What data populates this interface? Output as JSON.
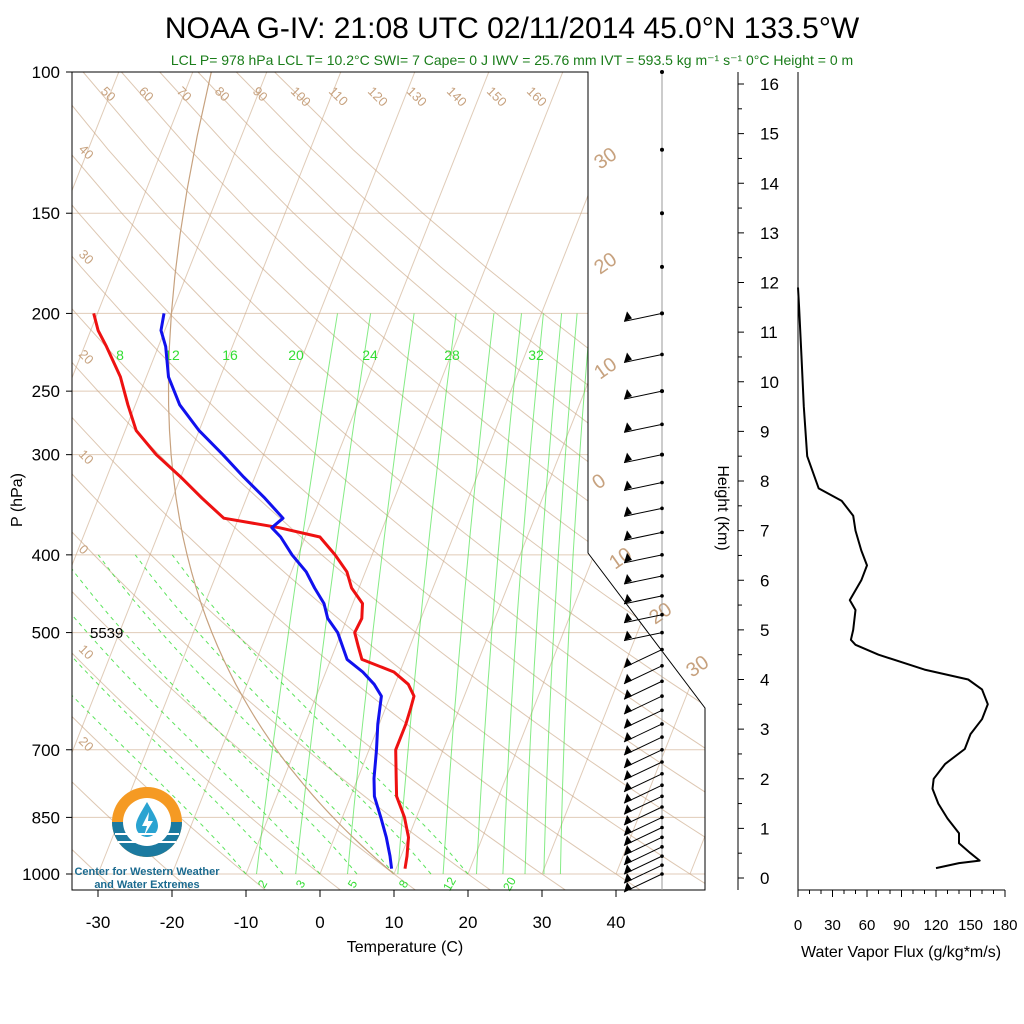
{
  "title": "NOAA G-IV: 21:08 UTC 02/11/2014  45.0°N 133.5°W",
  "subtitle": "LCL P= 978 hPa  LCL T= 10.2°C  SWI= 7  Cape= 0 J  IWV = 25.76 mm  IVT = 593.5 kg m⁻¹ s⁻¹  0°C Height = 0 m",
  "logo_text": [
    "Center for Western Weather",
    "and Water Extremes"
  ],
  "colors": {
    "temperature": "#ee1111",
    "dewpoint": "#1111ee",
    "mixing_ratio": "#33dd33",
    "dry_adiabat": "#c7a27f",
    "flux": "#000000"
  },
  "chart_data": [
    {
      "type": "line",
      "kind": "skew-T log-P",
      "xlabel": "Temperature (C)",
      "ylabel": "P (hPa)",
      "xlim": [
        -30,
        40
      ],
      "ylim": [
        1000,
        100
      ],
      "y_scale": "log",
      "x_ticks": [
        "-30",
        "-20",
        "-10",
        "0",
        "10",
        "20",
        "30",
        "40"
      ],
      "y_ticks": [
        "100",
        "150",
        "200",
        "250",
        "300",
        "400",
        "500",
        "700",
        "850",
        "1000"
      ],
      "annotation": "5539",
      "mixing_ratio_labels_top": [
        "8",
        "12",
        "16",
        "20",
        "24",
        "28",
        "32"
      ],
      "mixing_ratio_labels_bottom": [
        "2",
        "3",
        "5",
        "8",
        "12",
        "20"
      ],
      "adiabat_labels": [
        "50",
        "60",
        "70",
        "80",
        "90",
        "100",
        "110",
        "120",
        "130",
        "140",
        "150",
        "160",
        "40",
        "30",
        "20",
        "10",
        "0",
        "10",
        "20",
        "30",
        "20",
        "10",
        "0",
        "10",
        "20",
        "30"
      ],
      "series": [
        {
          "name": "Temperature",
          "p": [
            985,
            950,
            900,
            850,
            800,
            760,
            700,
            650,
            620,
            600,
            580,
            560,
            540,
            520,
            500,
            480,
            460,
            440,
            420,
            400,
            380,
            370,
            360,
            340,
            320,
            300,
            280,
            260,
            240,
            220,
            210,
            200
          ],
          "t": [
            11.2,
            10.8,
            10.0,
            8.4,
            6.2,
            5.2,
            3.6,
            3.6,
            3.4,
            3.2,
            1.8,
            -0.8,
            -5.8,
            -7.0,
            -8.2,
            -8.0,
            -8.7,
            -11.0,
            -12.5,
            -15.0,
            -18.0,
            -24.0,
            -32.0,
            -36.0,
            -40.0,
            -44.5,
            -48.5,
            -51.0,
            -53.5,
            -57.0,
            -59.0,
            -60.5
          ]
        },
        {
          "name": "Dewpoint",
          "p": [
            985,
            950,
            900,
            850,
            800,
            760,
            700,
            650,
            600,
            580,
            560,
            540,
            500,
            480,
            460,
            440,
            420,
            400,
            380,
            370,
            360,
            340,
            320,
            300,
            280,
            260,
            240,
            220,
            210,
            200
          ],
          "td": [
            9.4,
            8.5,
            7.0,
            5.2,
            3.2,
            2.2,
            1.0,
            -0.2,
            -1.2,
            -2.8,
            -5.0,
            -7.8,
            -10.5,
            -12.6,
            -13.9,
            -16.0,
            -18.0,
            -20.8,
            -23.3,
            -25.0,
            -24.0,
            -27.5,
            -31.5,
            -35.5,
            -40.0,
            -44.0,
            -47.0,
            -49.0,
            -50.5,
            -51.0
          ]
        }
      ],
      "wind_barbs_hpa": [
        1000,
        975,
        950,
        925,
        900,
        875,
        850,
        825,
        800,
        775,
        750,
        725,
        700,
        675,
        650,
        625,
        600,
        575,
        550,
        525,
        500,
        475,
        450,
        425,
        400,
        375,
        350,
        325,
        300,
        275,
        250,
        225,
        200
      ]
    },
    {
      "type": "line",
      "name": "Water Vapor Flux profile",
      "xlabel": "Water Vapor Flux (g/kg*m/s)",
      "ylabel": "Height (Km)",
      "xlim": [
        0,
        180
      ],
      "ylim": [
        0,
        16
      ],
      "x_ticks": [
        "0",
        "30",
        "60",
        "90",
        "120",
        "150",
        "180"
      ],
      "y_ticks": [
        "0",
        "1",
        "2",
        "3",
        "4",
        "5",
        "6",
        "7",
        "8",
        "9",
        "10",
        "11",
        "12",
        "13",
        "14",
        "15",
        "16"
      ],
      "height_km": [
        0.2,
        0.3,
        0.35,
        0.5,
        0.7,
        0.9,
        1.2,
        1.5,
        1.8,
        2.0,
        2.3,
        2.6,
        2.9,
        3.2,
        3.5,
        3.8,
        4.0,
        4.2,
        4.5,
        4.7,
        4.8,
        5.0,
        5.4,
        5.6,
        6.0,
        6.3,
        6.6,
        7.0,
        7.3,
        7.6,
        7.85,
        8.5,
        9.5,
        10.5,
        11.5,
        11.9
      ],
      "flux": [
        120,
        140,
        158,
        150,
        140,
        140,
        130,
        122,
        117,
        118,
        128,
        145,
        150,
        160,
        165,
        160,
        148,
        110,
        70,
        50,
        46,
        48,
        50,
        45,
        55,
        60,
        55,
        50,
        48,
        38,
        18,
        8,
        5,
        3,
        1,
        0
      ]
    }
  ]
}
